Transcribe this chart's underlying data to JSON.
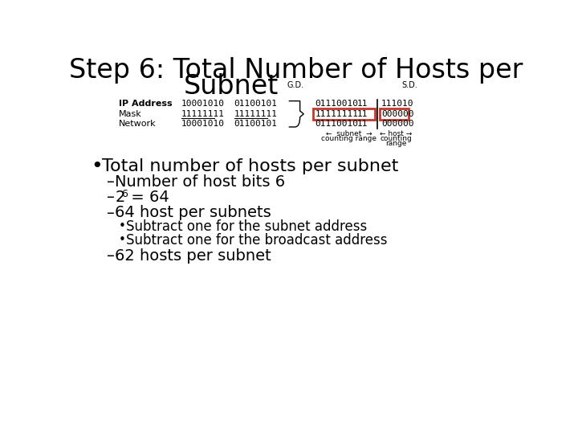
{
  "title_line1": "Step 6: Total Number of Hosts per",
  "title_line2": "Subnet",
  "bg_color": "#ffffff",
  "title_fontsize": 24,
  "body_fontsize": 15,
  "small_fontsize": 8,
  "table_label_col": [
    "IP Address",
    "Mask",
    "Network"
  ],
  "table_col2": [
    "10001010",
    "11111111",
    "10001010"
  ],
  "table_col3": [
    "01100101",
    "11111111",
    "01100101"
  ],
  "table_col4": [
    "01110010",
    "11111111",
    "01110010"
  ],
  "table_col5": [
    "11",
    "11",
    "11"
  ],
  "table_col6": [
    "111010",
    "000000",
    "000000"
  ],
  "gd_label": "G.D.",
  "sd_label": "S.D.",
  "subnet_arrow": "←  subnet  →",
  "subnet_label": "counting range",
  "host_arrow": "← host →",
  "host_label1": "counting",
  "host_label2": "range",
  "bullet1": "Total number of hosts per subnet",
  "dash1": "Number of host bits 6",
  "dash2_base": "2",
  "dash2_exp": "6",
  "dash2_rest": " = 64",
  "dash3": "64 host per subnets",
  "sub1": "Subtract one for the subnet address",
  "sub2": "Subtract one for the broadcast address",
  "dash4": "62 hosts per subnet",
  "red_color": "#c0392b"
}
